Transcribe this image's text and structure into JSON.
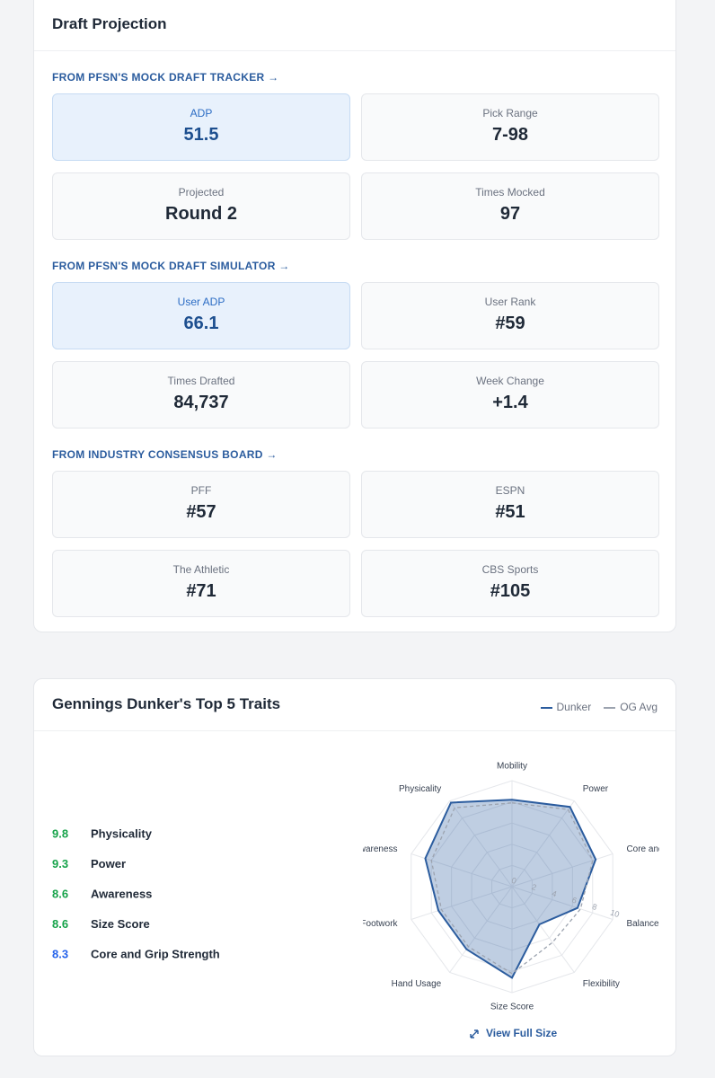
{
  "draft_projection": {
    "title": "Draft Projection",
    "sections": [
      {
        "label": "FROM PFSN'S MOCK DRAFT TRACKER →",
        "stats": [
          {
            "label": "ADP",
            "value": "51.5",
            "highlight": true
          },
          {
            "label": "Pick Range",
            "value": "7-98",
            "highlight": false
          },
          {
            "label": "Projected",
            "value": "Round 2",
            "highlight": false
          },
          {
            "label": "Times Mocked",
            "value": "97",
            "highlight": false
          }
        ]
      },
      {
        "label": "FROM PFSN'S MOCK DRAFT SIMULATOR →",
        "stats": [
          {
            "label": "User ADP",
            "value": "66.1",
            "highlight": true
          },
          {
            "label": "User Rank",
            "value": "#59",
            "highlight": false
          },
          {
            "label": "Times Drafted",
            "value": "84,737",
            "highlight": false
          },
          {
            "label": "Week Change",
            "value": "+1.4",
            "highlight": false
          }
        ]
      },
      {
        "label": "FROM INDUSTRY CONSENSUS BOARD →",
        "stats": [
          {
            "label": "PFF",
            "value": "#57",
            "highlight": false
          },
          {
            "label": "ESPN",
            "value": "#51",
            "highlight": false
          },
          {
            "label": "The Athletic",
            "value": "#71",
            "highlight": false
          },
          {
            "label": "CBS Sports",
            "value": "#105",
            "highlight": false
          }
        ]
      }
    ]
  },
  "traits": {
    "title": "Gennings Dunker's Top 5 Traits",
    "top_traits": [
      {
        "score": 9.8,
        "name": "Physicality",
        "color": "#16a34a"
      },
      {
        "score": 9.3,
        "name": "Power",
        "color": "#16a34a"
      },
      {
        "score": 8.6,
        "name": "Awareness",
        "color": "#16a34a"
      },
      {
        "score": 8.6,
        "name": "Size Score",
        "color": "#16a34a"
      },
      {
        "score": 8.3,
        "name": "Core and Grip Strength",
        "color": "#2563eb"
      }
    ],
    "view_full_size": "View Full Size"
  },
  "chart_data": {
    "type": "radar",
    "categories": [
      "Mobility",
      "Power",
      "Core and Grip Strength",
      "Balance a",
      "Flexibility",
      "Size Score",
      "Hand Usage",
      "Footwork",
      "Awareness",
      "Physicality"
    ],
    "series": [
      {
        "name": "Dunker",
        "color": "#2b5c9e",
        "dashed": false,
        "values": [
          8.2,
          9.3,
          8.3,
          6.5,
          4.4,
          8.6,
          7.3,
          7.3,
          8.6,
          9.8
        ]
      },
      {
        "name": "OG Avg",
        "color": "#9ca3af",
        "dashed": true,
        "values": [
          7.9,
          9.0,
          8.0,
          6.8,
          6.5,
          8.2,
          7.0,
          7.0,
          8.0,
          9.2
        ]
      }
    ],
    "rlim": [
      0,
      10
    ],
    "rticks": [
      0,
      2,
      4,
      6,
      8,
      10
    ],
    "grid": true
  }
}
